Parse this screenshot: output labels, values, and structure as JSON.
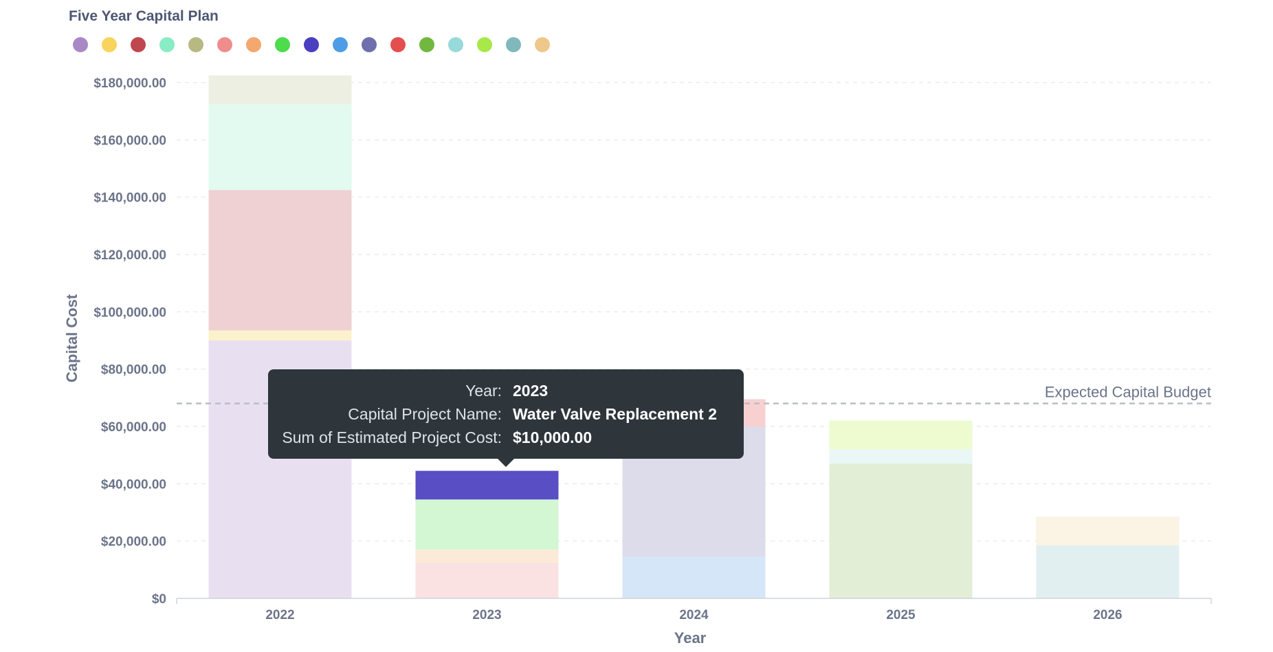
{
  "chart_data": {
    "type": "bar",
    "stacked": true,
    "title": "Five Year Capital Plan",
    "xlabel": "Year",
    "ylabel": "Capital Cost",
    "ylim": [
      0,
      180000
    ],
    "y_ticks": [
      0,
      20000,
      40000,
      60000,
      80000,
      100000,
      120000,
      140000,
      160000,
      180000
    ],
    "y_tick_labels": [
      "$0",
      "$20,000.00",
      "$40,000.00",
      "$60,000.00",
      "$80,000.00",
      "$100,000.00",
      "$120,000.00",
      "$140,000.00",
      "$160,000.00",
      "$180,000.00"
    ],
    "categories": [
      "2022",
      "2023",
      "2024",
      "2025",
      "2026"
    ],
    "grid": true,
    "legend_position": "top-left",
    "legend_colors": [
      "#a989c5",
      "#f9d45c",
      "#c0474d",
      "#88ecc4",
      "#b6b981",
      "#ef8c8c",
      "#f2a86f",
      "#4cdc4c",
      "#4a3fc0",
      "#4e9ce6",
      "#6f6fae",
      "#e44e4e",
      "#72b840",
      "#98d9d9",
      "#a8e84a",
      "#80b8bc",
      "#eec88a"
    ],
    "reference_line": {
      "label": "Expected Capital Budget",
      "value": 68000
    },
    "stacks": [
      {
        "category": "2022",
        "segments": [
          {
            "value": 90000,
            "color": "#e8e0f0"
          },
          {
            "value": 3500,
            "color": "#fcf1cd"
          },
          {
            "value": 49000,
            "color": "#efd1d3"
          },
          {
            "value": 30000,
            "color": "#e2faf0"
          },
          {
            "value": 10000,
            "color": "#eeefe3"
          }
        ]
      },
      {
        "category": "2023",
        "segments": [
          {
            "value": 12500,
            "color": "#fbe2e2"
          },
          {
            "value": 4500,
            "color": "#fcead9"
          },
          {
            "value": 17500,
            "color": "#d3f6d3"
          },
          {
            "value": 10000,
            "color": "#5a4ec5"
          }
        ]
      },
      {
        "category": "2024",
        "segments": [
          {
            "value": 14500,
            "color": "#d5e6f8"
          },
          {
            "value": 45500,
            "color": "#dcdcea"
          },
          {
            "value": 9500,
            "color": "#f9d0d0"
          }
        ]
      },
      {
        "category": "2025",
        "segments": [
          {
            "value": 47000,
            "color": "#e2eed6"
          },
          {
            "value": 5000,
            "color": "#e9f7f7"
          },
          {
            "value": 10000,
            "color": "#eefad0"
          }
        ]
      },
      {
        "category": "2026",
        "segments": [
          {
            "value": 18500,
            "color": "#e2eff0"
          },
          {
            "value": 10000,
            "color": "#fbf3e3"
          }
        ]
      }
    ]
  },
  "tooltip": {
    "rows": [
      {
        "key": "Year:",
        "value": "2023"
      },
      {
        "key": "Capital Project Name:",
        "value": "Water Valve Replacement 2"
      },
      {
        "key": "Sum of Estimated Project Cost:",
        "value": "$10,000.00"
      }
    ]
  }
}
